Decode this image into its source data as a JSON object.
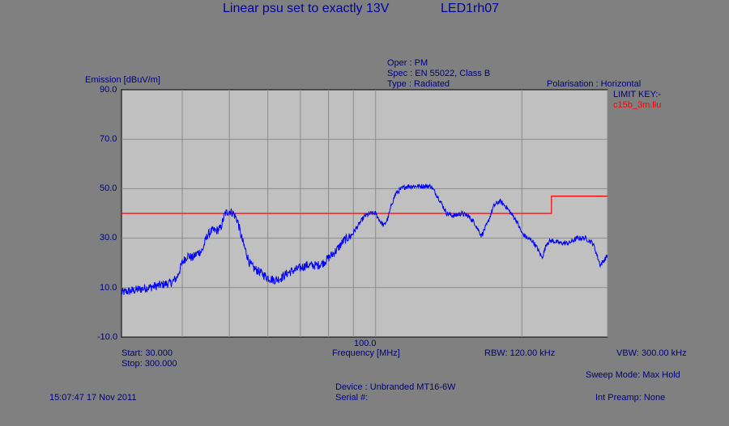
{
  "header": {
    "title": "Linear psu set to exactly 13V",
    "id": "LED1rh07"
  },
  "info": {
    "oper": "Oper : PM",
    "spec": "Spec : EN 55022, Class B",
    "type": "Type : Radiated",
    "polarisation": "Polarisation : Horizontal",
    "limit_key_label": "LIMIT KEY:-",
    "limit_key_file": "c15b_3m.llu"
  },
  "footer": {
    "start": "Start: 30.000",
    "stop": "Stop: 300.000",
    "rbw": "RBW: 120.00 kHz",
    "vbw": "VBW: 300.00 kHz",
    "sweep_mode": "Sweep Mode: Max Hold",
    "device": "Device : Unbranded MT16-6W",
    "serial": "Serial #:",
    "int_preamp": "Int Preamp: None",
    "timestamp": "15:07:47 17 Nov 2011"
  },
  "chart_data": {
    "type": "line",
    "ylabel": "Emission [dBuV/m]",
    "xlabel": "Frequency [MHz]",
    "x_scale": "log",
    "xlim": [
      30,
      300
    ],
    "ylim": [
      -10,
      90
    ],
    "y_ticks": [
      "90.0",
      "70.0",
      "50.0",
      "30.0",
      "10.0",
      "-10.0"
    ],
    "x_tick_label": {
      "value": 100,
      "label": "100.0"
    },
    "x_grid": [
      40,
      50,
      60,
      70,
      80,
      90,
      100,
      200,
      300
    ],
    "grid": true,
    "colors": {
      "series": "#0000ff",
      "limit": "#ff0000",
      "plot_bg": "#c0c0c0",
      "grid": "#8c8c8c"
    },
    "limit": {
      "x": [
        30,
        230,
        230,
        300
      ],
      "y": [
        40,
        40,
        47,
        47
      ]
    },
    "series": [
      {
        "x": [
          30,
          31,
          32,
          33,
          34,
          35,
          36,
          37,
          38,
          39,
          40,
          41,
          42,
          43,
          44,
          45,
          46,
          47,
          48,
          49,
          50,
          51,
          52,
          53,
          54,
          55,
          56,
          57,
          58,
          60,
          62,
          64,
          66,
          68,
          70,
          72,
          74,
          76,
          78,
          80,
          83,
          86,
          89,
          92,
          95,
          98,
          100,
          102,
          104,
          106,
          108,
          110,
          113,
          116,
          120,
          125,
          130,
          135,
          140,
          145,
          150,
          155,
          160,
          165,
          170,
          175,
          180,
          185,
          190,
          195,
          200,
          205,
          210,
          215,
          220,
          225,
          230,
          240,
          250,
          260,
          270,
          280,
          290,
          300
        ],
        "y": [
          8,
          8.5,
          9,
          9.5,
          10,
          10.5,
          11,
          11.5,
          12,
          14,
          20,
          23,
          22,
          24,
          25,
          31,
          33,
          33,
          34,
          40,
          41,
          40,
          37,
          30,
          25,
          20,
          18,
          17,
          16,
          14,
          13,
          14,
          16,
          17,
          18,
          19,
          19,
          19,
          20,
          22,
          25,
          29,
          31,
          35,
          39,
          40,
          40,
          37,
          35,
          38,
          44,
          48,
          50,
          51,
          51,
          51,
          51,
          46,
          40,
          39,
          40,
          39,
          36,
          31,
          36,
          43,
          45,
          43,
          40,
          37,
          32,
          30,
          29,
          26,
          22,
          28,
          29,
          28,
          28,
          30,
          30,
          28,
          19,
          23
        ]
      }
    ]
  }
}
